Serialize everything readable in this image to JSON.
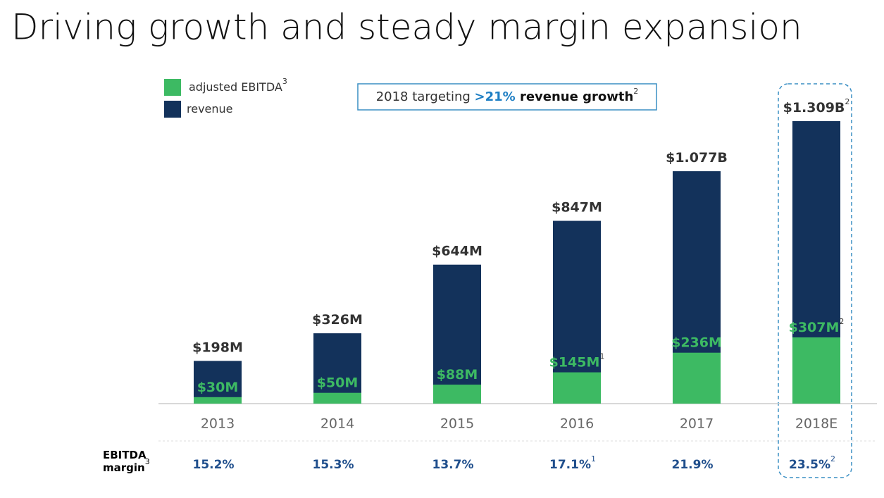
{
  "title": "Driving growth and steady margin expansion",
  "chart_data": {
    "type": "bar",
    "overlay": true,
    "categories": [
      "2013",
      "2014",
      "2015",
      "2016",
      "2017",
      "2018E"
    ],
    "series": [
      {
        "name": "adjusted EBITDA",
        "name_note": "3",
        "color": "#3dba63",
        "values": [
          30,
          50,
          88,
          145,
          236,
          307
        ],
        "value_labels": [
          "$30M",
          "$50M",
          "$88M",
          "$145M",
          "$236M",
          "$307M"
        ],
        "notes": [
          null,
          null,
          null,
          "1",
          null,
          "2"
        ]
      },
      {
        "name": "revenue",
        "color": "#13325b",
        "values": [
          198,
          326,
          644,
          847,
          1077,
          1309
        ],
        "value_labels": [
          "$198M",
          "$326M",
          "$644M",
          "$847M",
          "$1.077B",
          "$1.309B"
        ],
        "notes": [
          null,
          null,
          null,
          null,
          null,
          "2"
        ]
      }
    ],
    "callout": {
      "parts": [
        "2018 targeting ",
        ">21%",
        " revenue growth"
      ],
      "note": "2"
    },
    "margin_row": {
      "label": [
        "EBITDA",
        "margin"
      ],
      "label_note": "3",
      "values": [
        15.2,
        15.3,
        13.7,
        17.1,
        21.9,
        23.5
      ],
      "value_labels": [
        "15.2%",
        "15.3%",
        "13.7%",
        "17.1%",
        "21.9%",
        "23.5%"
      ],
      "notes": [
        null,
        null,
        null,
        "1",
        null,
        "2"
      ]
    }
  }
}
